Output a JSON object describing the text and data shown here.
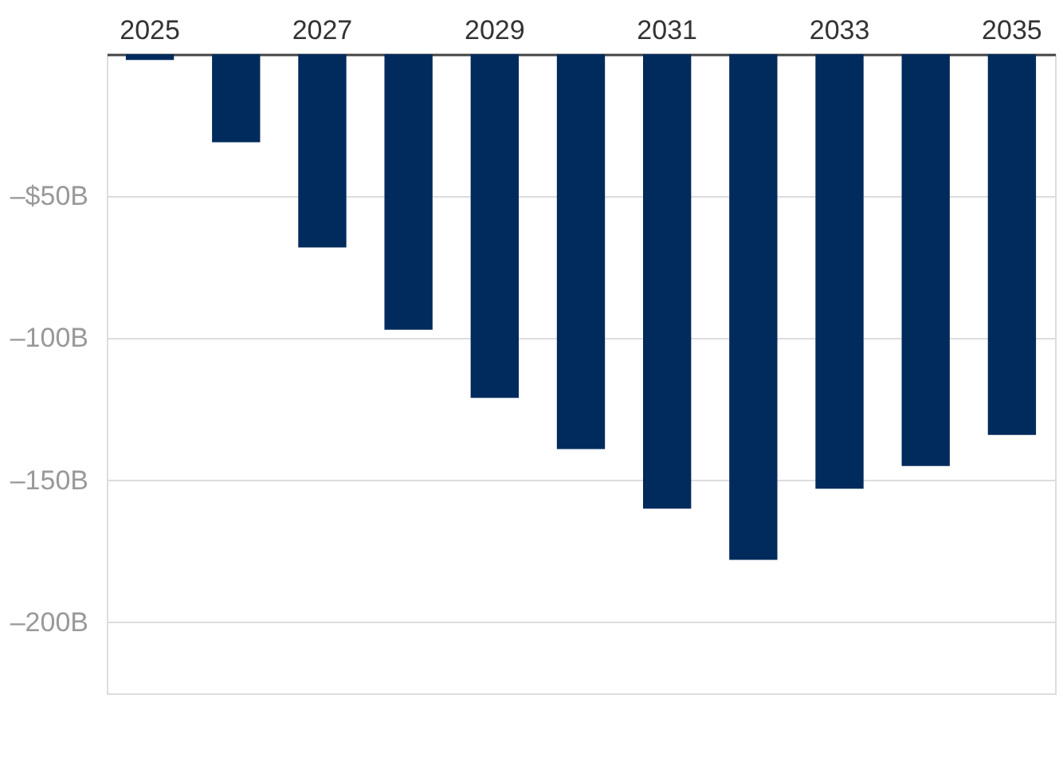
{
  "chart_data": {
    "type": "bar",
    "categories": [
      "2025",
      null,
      "2027",
      null,
      "2029",
      null,
      "2031",
      null,
      "2033",
      null,
      "2035"
    ],
    "values": [
      -2,
      -31,
      -68,
      -97,
      -121,
      -139,
      -160,
      -178,
      -153,
      -145,
      -134
    ],
    "color": "#002b5c",
    "ylim": [
      -225,
      0
    ],
    "yticks": [
      {
        "value": -200,
        "label": "–200B"
      },
      {
        "value": -150,
        "label": "–150B"
      },
      {
        "value": -100,
        "label": "–100B"
      },
      {
        "value": -50,
        "label": "–$50B"
      }
    ],
    "grid": "y"
  }
}
